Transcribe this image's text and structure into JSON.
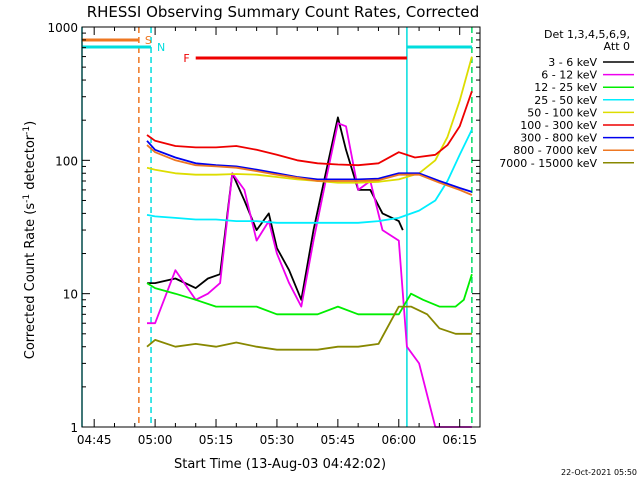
{
  "chart_data": {
    "type": "line",
    "title": "RHESSI Observing Summary Count Rates, Corrected",
    "xlabel": "Start Time (13-Aug-03 04:42:02)",
    "ylabel_main": "Corrected Count Rate (s",
    "ylabel_sup1": "-1",
    "ylabel_mid": " detector",
    "ylabel_sup2": "-1",
    "ylabel_end": ")",
    "y_scale": "log",
    "ylim": [
      1,
      1000
    ],
    "xlim": [
      "04:42",
      "06:20"
    ],
    "x_ticks": [
      "04:45",
      "05:00",
      "05:15",
      "05:30",
      "05:45",
      "06:00",
      "06:15"
    ],
    "y_ticks": [
      "1",
      "10",
      "100",
      "1000"
    ],
    "detectors": "Det 1,3,4,5,6,9,",
    "attenuator": "Att 0",
    "footer_date": "22-Oct-2021 05:50",
    "flags": [
      {
        "label": "S",
        "color": "#ee7722",
        "start": "04:42",
        "end": "04:56"
      },
      {
        "label": "N",
        "color": "#00dddd",
        "start": "04:42",
        "end": "04:59"
      },
      {
        "label": "F",
        "color": "#ee0000",
        "start": "05:10",
        "end": "06:02"
      },
      {
        "label": "",
        "color": "#00dddd",
        "start": "06:02",
        "end": "06:18"
      }
    ],
    "vlines": [
      {
        "time": "04:42",
        "color": "#00dddd",
        "style": "solid"
      },
      {
        "time": "04:56",
        "color": "#ee7722",
        "style": "dashed"
      },
      {
        "time": "04:59",
        "color": "#00dddd",
        "style": "dashed"
      },
      {
        "time": "06:02",
        "color": "#00dddd",
        "style": "solid"
      },
      {
        "time": "06:18",
        "color": "#00dd66",
        "style": "dashed"
      }
    ],
    "series": [
      {
        "name": "3 - 6 keV",
        "color": "#000000",
        "x": [
          "04:58",
          "05:00",
          "05:05",
          "05:10",
          "05:13",
          "05:16",
          "05:19",
          "05:22",
          "05:25",
          "05:28",
          "05:30",
          "05:33",
          "05:36",
          "05:39",
          "05:42",
          "05:45",
          "05:47",
          "05:50",
          "05:53",
          "05:56",
          "06:00",
          "06:01"
        ],
        "y": [
          12,
          12,
          13,
          11,
          13,
          14,
          80,
          50,
          30,
          40,
          22,
          15,
          9,
          30,
          80,
          210,
          120,
          60,
          60,
          40,
          35,
          30
        ]
      },
      {
        "name": "6 - 12 keV",
        "color": "#ee00ee",
        "x": [
          "04:58",
          "05:00",
          "05:05",
          "05:10",
          "05:13",
          "05:16",
          "05:19",
          "05:22",
          "05:25",
          "05:28",
          "05:30",
          "05:33",
          "05:36",
          "05:39",
          "05:42",
          "05:45",
          "05:47",
          "05:50",
          "05:53",
          "05:56",
          "06:00",
          "06:02",
          "06:05",
          "06:09",
          "06:12",
          "06:15",
          "06:18"
        ],
        "y": [
          6,
          6,
          15,
          9,
          10,
          12,
          80,
          60,
          25,
          35,
          20,
          12,
          8,
          25,
          70,
          190,
          180,
          60,
          70,
          30,
          25,
          4,
          3,
          1,
          1,
          1,
          1
        ]
      },
      {
        "name": "12 - 25 keV",
        "color": "#00ee00",
        "x": [
          "04:58",
          "05:00",
          "05:05",
          "05:10",
          "05:15",
          "05:20",
          "05:25",
          "05:30",
          "05:35",
          "05:40",
          "05:45",
          "05:50",
          "05:55",
          "06:00",
          "06:03",
          "06:06",
          "06:10",
          "06:14",
          "06:16",
          "06:18"
        ],
        "y": [
          12,
          11,
          10,
          9,
          8,
          8,
          8,
          7,
          7,
          7,
          8,
          7,
          7,
          7,
          10,
          9,
          8,
          8,
          9,
          14
        ]
      },
      {
        "name": "25 - 50 keV",
        "color": "#00eeff",
        "x": [
          "04:58",
          "05:00",
          "05:05",
          "05:10",
          "05:15",
          "05:20",
          "05:25",
          "05:30",
          "05:35",
          "05:40",
          "05:45",
          "05:50",
          "05:55",
          "06:00",
          "06:05",
          "06:09",
          "06:12",
          "06:15",
          "06:18"
        ],
        "y": [
          39,
          38,
          37,
          36,
          36,
          35,
          35,
          34,
          34,
          34,
          34,
          34,
          35,
          37,
          42,
          50,
          70,
          110,
          170
        ]
      },
      {
        "name": "50 - 100 keV",
        "color": "#dddd00",
        "x": [
          "04:58",
          "05:00",
          "05:05",
          "05:10",
          "05:15",
          "05:20",
          "05:25",
          "05:30",
          "05:35",
          "05:40",
          "05:45",
          "05:50",
          "05:55",
          "06:00",
          "06:05",
          "06:09",
          "06:12",
          "06:15",
          "06:18"
        ],
        "y": [
          88,
          85,
          80,
          78,
          78,
          79,
          78,
          75,
          72,
          70,
          68,
          68,
          69,
          72,
          80,
          100,
          150,
          280,
          600
        ]
      },
      {
        "name": "100 - 300 keV",
        "color": "#ee0000",
        "x": [
          "04:58",
          "05:00",
          "05:05",
          "05:10",
          "05:15",
          "05:20",
          "05:25",
          "05:30",
          "05:35",
          "05:40",
          "05:45",
          "05:50",
          "05:55",
          "06:00",
          "06:04",
          "06:09",
          "06:12",
          "06:15",
          "06:18"
        ],
        "y": [
          155,
          140,
          128,
          125,
          125,
          128,
          120,
          110,
          100,
          95,
          93,
          92,
          95,
          115,
          105,
          110,
          130,
          180,
          330
        ]
      },
      {
        "name": "300 - 800 keV",
        "color": "#0000ee",
        "x": [
          "04:58",
          "05:00",
          "05:05",
          "05:10",
          "05:15",
          "05:20",
          "05:25",
          "05:30",
          "05:35",
          "05:40",
          "05:45",
          "05:50",
          "05:55",
          "06:00",
          "06:05",
          "06:10",
          "06:15",
          "06:18"
        ],
        "y": [
          140,
          120,
          105,
          95,
          92,
          90,
          85,
          80,
          75,
          72,
          72,
          72,
          73,
          80,
          80,
          70,
          62,
          58
        ]
      },
      {
        "name": "800 - 7000 keV",
        "color": "#ee7722",
        "x": [
          "04:58",
          "05:00",
          "05:05",
          "05:10",
          "05:15",
          "05:20",
          "05:25",
          "05:30",
          "05:35",
          "05:40",
          "05:45",
          "05:50",
          "05:55",
          "06:00",
          "06:05",
          "06:10",
          "06:15",
          "06:18"
        ],
        "y": [
          130,
          115,
          100,
          92,
          90,
          88,
          83,
          78,
          74,
          70,
          70,
          70,
          71,
          78,
          78,
          68,
          60,
          55
        ]
      },
      {
        "name": "7000 - 15000 keV",
        "color": "#888800",
        "x": [
          "04:58",
          "05:00",
          "05:05",
          "05:10",
          "05:15",
          "05:20",
          "05:25",
          "05:30",
          "05:35",
          "05:40",
          "05:45",
          "05:50",
          "05:55",
          "06:00",
          "06:03",
          "06:07",
          "06:10",
          "06:14",
          "06:18"
        ],
        "y": [
          4,
          4.5,
          4,
          4.2,
          4,
          4.3,
          4,
          3.8,
          3.8,
          3.8,
          4,
          4,
          4.2,
          8,
          8,
          7,
          5.5,
          5,
          5
        ]
      }
    ]
  }
}
